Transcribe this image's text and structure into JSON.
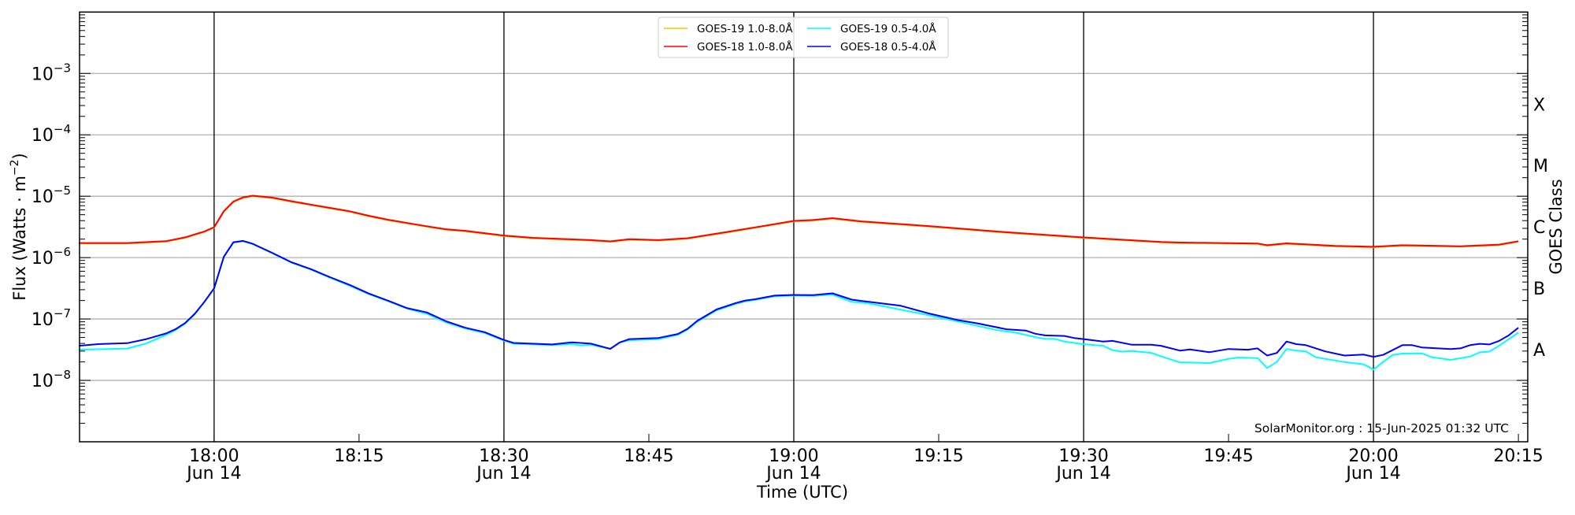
{
  "chart_data": {
    "type": "line",
    "xlabel": "Time (UTC)",
    "ylabel": "Flux (Watts · m",
    "ylabel_exp": "−2",
    "ylabel_close": ")",
    "y2label": "GOES Class",
    "yscale": "log",
    "xlim": [
      "17:46",
      "20:16"
    ],
    "ylim": [
      1e-09,
      0.01
    ],
    "grid": "horizontal at decades; vertical lines at 18:00, 18:30, 19:00, 19:30, 20:00",
    "vlines": [
      "18:00",
      "18:30",
      "19:00",
      "19:30",
      "20:00"
    ],
    "xticks": [
      {
        "t": "18:00",
        "label": "18:00",
        "sub": "Jun 14"
      },
      {
        "t": "18:15",
        "label": "18:15",
        "sub": ""
      },
      {
        "t": "18:30",
        "label": "18:30",
        "sub": "Jun 14"
      },
      {
        "t": "18:45",
        "label": "18:45",
        "sub": ""
      },
      {
        "t": "19:00",
        "label": "19:00",
        "sub": "Jun 14"
      },
      {
        "t": "19:15",
        "label": "19:15",
        "sub": ""
      },
      {
        "t": "19:30",
        "label": "19:30",
        "sub": "Jun 14"
      },
      {
        "t": "19:45",
        "label": "19:45",
        "sub": ""
      },
      {
        "t": "20:00",
        "label": "20:00",
        "sub": "Jun 14"
      },
      {
        "t": "20:15",
        "label": "20:15",
        "sub": ""
      }
    ],
    "yticks": [
      {
        "value": 0.001,
        "base": "10",
        "exp": "−3"
      },
      {
        "value": 0.0001,
        "base": "10",
        "exp": "−4"
      },
      {
        "value": 1e-05,
        "base": "10",
        "exp": "−5"
      },
      {
        "value": 1e-06,
        "base": "10",
        "exp": "−6"
      },
      {
        "value": 1e-07,
        "base": "10",
        "exp": "−7"
      },
      {
        "value": 1e-08,
        "base": "10",
        "exp": "−8"
      }
    ],
    "goes_classes": [
      {
        "label": "X",
        "value": 0.000316
      },
      {
        "label": "M",
        "value": 3.16e-05
      },
      {
        "label": "C",
        "value": 3.16e-06
      },
      {
        "label": "B",
        "value": 3.16e-07
      },
      {
        "label": "A",
        "value": 3.16e-08
      }
    ],
    "legend": {
      "placement": "top-center",
      "columns": 2
    },
    "watermark": "SolarMonitor.org : 15-Jun-2025 01:32 UTC",
    "series": [
      {
        "name": "GOES-19 1.0-8.0Å",
        "color": "#ffc000",
        "t": [
          "17:46",
          "17:51",
          "17:55",
          "17:57",
          "17:59",
          "18:00",
          "18:01",
          "18:02",
          "18:03",
          "18:04",
          "18:06",
          "18:08",
          "18:10",
          "18:12",
          "18:14",
          "18:16",
          "18:18",
          "18:20",
          "18:22",
          "18:24",
          "18:26",
          "18:28",
          "18:30",
          "18:33",
          "18:39",
          "18:41",
          "18:43",
          "18:46",
          "18:49",
          "18:53",
          "18:57",
          "19:00",
          "19:02",
          "19:04",
          "19:07",
          "19:14",
          "19:22",
          "19:30",
          "19:38",
          "19:40",
          "19:48",
          "19:49",
          "19:51",
          "19:56",
          "20:00",
          "20:03",
          "20:09",
          "20:13",
          "20:15"
        ],
        "v": [
          1.73e-06,
          1.73e-06,
          1.85e-06,
          2.14e-06,
          2.67e-06,
          3.13e-06,
          5.7e-06,
          8.2e-06,
          9.6e-06,
          1.02e-05,
          9.5e-06,
          8.3e-06,
          7.3e-06,
          6.45e-06,
          5.7e-06,
          4.8e-06,
          4.14e-06,
          3.66e-06,
          3.24e-06,
          2.9e-06,
          2.73e-06,
          2.5e-06,
          2.29e-06,
          2.1e-06,
          1.93e-06,
          1.84e-06,
          1.99e-06,
          1.93e-06,
          2.07e-06,
          2.6e-06,
          3.3e-06,
          3.96e-06,
          4.1e-06,
          4.4e-06,
          3.9e-06,
          3.26e-06,
          2.59e-06,
          2.13e-06,
          1.8e-06,
          1.76e-06,
          1.7e-06,
          1.59e-06,
          1.71e-06,
          1.55e-06,
          1.5e-06,
          1.59e-06,
          1.53e-06,
          1.63e-06,
          1.85e-06
        ]
      },
      {
        "name": "GOES-18 1.0-8.0Å",
        "color": "#ff0000",
        "t": [
          "17:46",
          "17:51",
          "17:55",
          "17:57",
          "17:59",
          "18:00",
          "18:01",
          "18:02",
          "18:03",
          "18:04",
          "18:06",
          "18:08",
          "18:10",
          "18:12",
          "18:14",
          "18:16",
          "18:18",
          "18:20",
          "18:22",
          "18:24",
          "18:26",
          "18:28",
          "18:30",
          "18:33",
          "18:39",
          "18:41",
          "18:43",
          "18:46",
          "18:49",
          "18:53",
          "18:57",
          "19:00",
          "19:02",
          "19:04",
          "19:07",
          "19:14",
          "19:22",
          "19:30",
          "19:38",
          "19:40",
          "19:48",
          "19:49",
          "19:51",
          "19:56",
          "20:00",
          "20:03",
          "20:09",
          "20:13",
          "20:15"
        ],
        "v": [
          1.73e-06,
          1.73e-06,
          1.85e-06,
          2.14e-06,
          2.67e-06,
          3.13e-06,
          5.7e-06,
          8.2e-06,
          9.6e-06,
          1.02e-05,
          9.5e-06,
          8.3e-06,
          7.3e-06,
          6.45e-06,
          5.7e-06,
          4.8e-06,
          4.14e-06,
          3.66e-06,
          3.24e-06,
          2.9e-06,
          2.73e-06,
          2.5e-06,
          2.29e-06,
          2.1e-06,
          1.93e-06,
          1.84e-06,
          1.99e-06,
          1.93e-06,
          2.07e-06,
          2.6e-06,
          3.3e-06,
          3.96e-06,
          4.1e-06,
          4.4e-06,
          3.9e-06,
          3.26e-06,
          2.59e-06,
          2.13e-06,
          1.8e-06,
          1.76e-06,
          1.7e-06,
          1.59e-06,
          1.71e-06,
          1.55e-06,
          1.5e-06,
          1.59e-06,
          1.53e-06,
          1.63e-06,
          1.85e-06
        ]
      },
      {
        "name": "GOES-19 0.5-4.0Å",
        "color": "#00ffff",
        "t": [
          "17:46",
          "17:51",
          "17:53",
          "17:55",
          "17:56",
          "17:57",
          "17:58",
          "17:59",
          "18:00",
          "18:01",
          "18:02",
          "18:03",
          "18:04",
          "18:06",
          "18:08",
          "18:10",
          "18:12",
          "18:14",
          "18:16",
          "18:18",
          "18:20",
          "18:22",
          "18:24",
          "18:26",
          "18:28",
          "18:30",
          "18:31",
          "18:35",
          "18:37",
          "18:38",
          "18:39",
          "18:41",
          "18:42",
          "18:43",
          "18:46",
          "18:48",
          "18:49",
          "18:50",
          "18:52",
          "18:54",
          "18:55",
          "18:56",
          "18:58",
          "19:00",
          "19:02",
          "19:04",
          "19:06",
          "19:07",
          "19:08",
          "19:14",
          "19:17",
          "19:21",
          "19:23",
          "19:25",
          "19:26",
          "19:27",
          "19:28",
          "19:30",
          "19:32",
          "19:33",
          "19:34",
          "19:35",
          "19:37",
          "19:38",
          "19:40",
          "19:41",
          "19:43",
          "19:45",
          "19:46",
          "19:48",
          "19:49",
          "19:50",
          "19:51",
          "19:52",
          "19:53",
          "19:54",
          "19:55",
          "19:57",
          "19:59",
          "20:00",
          "20:01",
          "20:02",
          "20:03",
          "20:05",
          "20:06",
          "20:08",
          "20:10",
          "20:11",
          "20:12",
          "20:13",
          "20:14",
          "20:15"
        ],
        "v": [
          3.16e-08,
          3.3e-08,
          4e-08,
          5.5e-08,
          6.6e-08,
          8.4e-08,
          1.2e-07,
          1.9e-07,
          3.1e-07,
          1.02e-06,
          1.76e-06,
          1.85e-06,
          1.66e-06,
          1.18e-06,
          8.3e-07,
          6.4e-07,
          4.7e-07,
          3.5e-07,
          2.55e-07,
          1.95e-07,
          1.47e-07,
          1.22e-07,
          8.8e-08,
          7e-08,
          5.9e-08,
          4.45e-08,
          3.95e-08,
          3.75e-08,
          3.9e-08,
          3.7e-08,
          3.8e-08,
          3.26e-08,
          4.2e-08,
          4.5e-08,
          4.7e-08,
          5.5e-08,
          6.7e-08,
          9e-08,
          1.38e-07,
          1.76e-07,
          1.94e-07,
          2.05e-07,
          2.33e-07,
          2.4e-07,
          2.38e-07,
          2.5e-07,
          1.9e-07,
          1.86e-07,
          1.77e-07,
          1.15e-07,
          9.1e-08,
          6.6e-08,
          5.98e-08,
          5.07e-08,
          4.73e-08,
          4.73e-08,
          4.29e-08,
          3.89e-08,
          3.66e-08,
          3.1e-08,
          2.94e-08,
          3e-08,
          2.81e-08,
          2.47e-08,
          1.96e-08,
          1.95e-08,
          1.91e-08,
          2.24e-08,
          2.35e-08,
          2.31e-08,
          1.59e-08,
          1.99e-08,
          3.24e-08,
          3.05e-08,
          2.97e-08,
          2.39e-08,
          2.24e-08,
          1.99e-08,
          1.82e-08,
          1.5e-08,
          1.99e-08,
          2.6e-08,
          2.73e-08,
          2.76e-08,
          2.39e-08,
          2.16e-08,
          2.44e-08,
          2.86e-08,
          2.94e-08,
          3.66e-08,
          4.68e-08,
          5.98e-08
        ]
      },
      {
        "name": "GOES-18 0.5-4.0Å",
        "color": "#0000ff",
        "t": [
          "17:46",
          "17:48",
          "17:51",
          "17:53",
          "17:55",
          "17:56",
          "17:57",
          "17:58",
          "17:59",
          "18:00",
          "18:01",
          "18:02",
          "18:03",
          "18:04",
          "18:06",
          "18:08",
          "18:10",
          "18:12",
          "18:14",
          "18:16",
          "18:18",
          "18:20",
          "18:22",
          "18:24",
          "18:26",
          "18:28",
          "18:30",
          "18:31",
          "18:35",
          "18:37",
          "18:39",
          "18:41",
          "18:42",
          "18:43",
          "18:46",
          "18:48",
          "18:49",
          "18:50",
          "18:52",
          "18:54",
          "18:55",
          "18:56",
          "18:58",
          "19:00",
          "19:02",
          "19:04",
          "19:06",
          "19:07",
          "19:11",
          "19:14",
          "19:17",
          "19:19",
          "19:22",
          "19:24",
          "19:25",
          "19:26",
          "19:28",
          "19:29",
          "19:30",
          "19:32",
          "19:33",
          "19:35",
          "19:37",
          "19:38",
          "19:40",
          "19:41",
          "19:43",
          "19:45",
          "19:47",
          "19:48",
          "19:49",
          "19:50",
          "19:51",
          "19:52",
          "19:53",
          "19:55",
          "19:57",
          "19:59",
          "20:00",
          "20:01",
          "20:03",
          "20:04",
          "20:05",
          "20:08",
          "20:09",
          "20:10",
          "20:11",
          "20:12",
          "20:13",
          "20:14",
          "20:15"
        ],
        "v": [
          3.66e-08,
          3.9e-08,
          4.04e-08,
          4.7e-08,
          5.8e-08,
          6.8e-08,
          8.6e-08,
          1.22e-07,
          1.91e-07,
          3.16e-07,
          1.03e-06,
          1.78e-06,
          1.87e-06,
          1.68e-06,
          1.2e-06,
          8.4e-07,
          6.5e-07,
          4.8e-07,
          3.6e-07,
          2.6e-07,
          1.99e-07,
          1.5e-07,
          1.28e-07,
          9.2e-08,
          7.2e-08,
          6.1e-08,
          4.55e-08,
          4.07e-08,
          3.85e-08,
          4.16e-08,
          3.96e-08,
          3.26e-08,
          4.16e-08,
          4.7e-08,
          4.9e-08,
          5.7e-08,
          6.9e-08,
          9.3e-08,
          1.43e-07,
          1.82e-07,
          2e-07,
          2.1e-07,
          2.4e-07,
          2.47e-07,
          2.45e-07,
          2.62e-07,
          2.07e-07,
          1.97e-07,
          1.65e-07,
          1.23e-07,
          9.6e-08,
          8.5e-08,
          6.8e-08,
          6.5e-08,
          5.75e-08,
          5.4e-08,
          5.3e-08,
          4.9e-08,
          4.7e-08,
          4.3e-08,
          4.4e-08,
          3.8e-08,
          3.8e-08,
          3.66e-08,
          3.05e-08,
          3.2e-08,
          2.87e-08,
          3.24e-08,
          3.16e-08,
          3.32e-08,
          2.54e-08,
          2.8e-08,
          4.3e-08,
          3.9e-08,
          3.75e-08,
          2.97e-08,
          2.54e-08,
          2.63e-08,
          2.42e-08,
          2.6e-08,
          3.75e-08,
          3.75e-08,
          3.44e-08,
          3.24e-08,
          3.32e-08,
          3.75e-08,
          3.94e-08,
          3.85e-08,
          4.4e-08,
          5.4e-08,
          7.2e-08
        ]
      }
    ]
  }
}
